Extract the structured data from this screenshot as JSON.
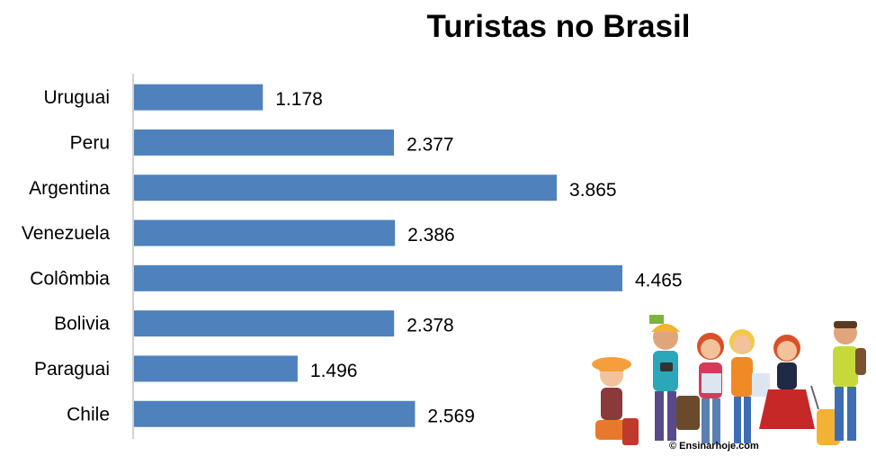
{
  "chart_data": {
    "type": "bar",
    "orientation": "horizontal",
    "title": "Turistas no Brasil",
    "categories": [
      "Uruguai",
      "Peru",
      "Argentina",
      "Venezuela",
      "Colômbia",
      "Bolivia",
      "Paraguai",
      "Chile"
    ],
    "values": [
      1.178,
      2.377,
      3.865,
      2.386,
      4.465,
      2.378,
      1.496,
      2.569
    ],
    "value_labels": [
      "1.178",
      "2.377",
      "3.865",
      "2.386",
      "4.465",
      "2.378",
      "1.496",
      "2.569"
    ],
    "xlabel": "",
    "ylabel": "",
    "xlim": [
      0,
      6.2
    ],
    "grid": false,
    "legend": "none",
    "bar_color": "#4F81BD",
    "axis_color": "#A6A6A6"
  },
  "illustration": {
    "icon": "tourists-group-icon",
    "credit": "© Ensinarhoje.com"
  }
}
